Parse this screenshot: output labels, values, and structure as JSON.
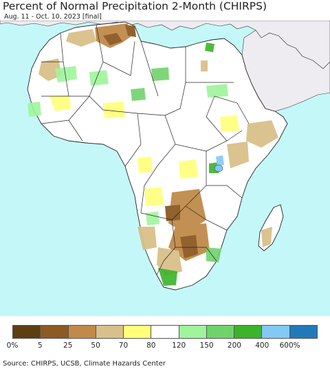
{
  "map": {
    "title": "Percent of Normal Precipitation 2-Month (CHIRPS)",
    "period": "Aug. 11 - Oct. 10, 2023 [final]",
    "source": "Source: CHIRPS, UCSB, Climate Hazards Center",
    "colors": {
      "ocean": "#c4f8f8",
      "land_normal": "#ffffff",
      "non_africa_land": "#eeebf1",
      "border": "#222222"
    }
  },
  "legend": {
    "bins": [
      {
        "color": "#5c3e12"
      },
      {
        "color": "#8c5a23"
      },
      {
        "color": "#c08b4a"
      },
      {
        "color": "#d9c08a"
      },
      {
        "color": "#ffff7a"
      },
      {
        "color": "#ffffff"
      },
      {
        "color": "#9ef59b"
      },
      {
        "color": "#6fd36c"
      },
      {
        "color": "#3bb32a"
      },
      {
        "color": "#84c8f6"
      },
      {
        "color": "#2279b8"
      }
    ],
    "ticks": [
      "0%",
      "5",
      "25",
      "50",
      "70",
      "80",
      "120",
      "150",
      "200",
      "400",
      "600%"
    ]
  }
}
